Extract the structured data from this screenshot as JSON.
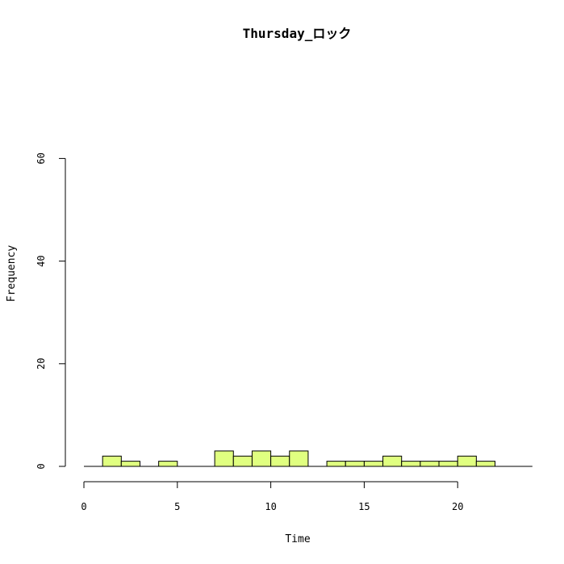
{
  "chart_data": {
    "type": "bar",
    "title": "Thursday_ロック",
    "xlabel": "Time",
    "ylabel": "Frequency",
    "bar_color": "#e0ff80",
    "xlim": [
      0,
      24
    ],
    "ylim": [
      0,
      60
    ],
    "x_ticks": [
      "0",
      "5",
      "10",
      "15",
      "20"
    ],
    "y_ticks": [
      "0",
      "20",
      "40",
      "60"
    ],
    "bins": [
      {
        "start": 1,
        "end": 2,
        "count": 2
      },
      {
        "start": 2,
        "end": 3,
        "count": 1
      },
      {
        "start": 4,
        "end": 5,
        "count": 1
      },
      {
        "start": 7,
        "end": 8,
        "count": 3
      },
      {
        "start": 8,
        "end": 9,
        "count": 2
      },
      {
        "start": 9,
        "end": 10,
        "count": 3
      },
      {
        "start": 10,
        "end": 11,
        "count": 2
      },
      {
        "start": 11,
        "end": 12,
        "count": 3
      },
      {
        "start": 13,
        "end": 14,
        "count": 1
      },
      {
        "start": 14,
        "end": 15,
        "count": 1
      },
      {
        "start": 15,
        "end": 16,
        "count": 1
      },
      {
        "start": 16,
        "end": 17,
        "count": 2
      },
      {
        "start": 17,
        "end": 18,
        "count": 1
      },
      {
        "start": 18,
        "end": 19,
        "count": 1
      },
      {
        "start": 19,
        "end": 20,
        "count": 1
      },
      {
        "start": 20,
        "end": 21,
        "count": 2
      },
      {
        "start": 21,
        "end": 22,
        "count": 1
      }
    ]
  }
}
